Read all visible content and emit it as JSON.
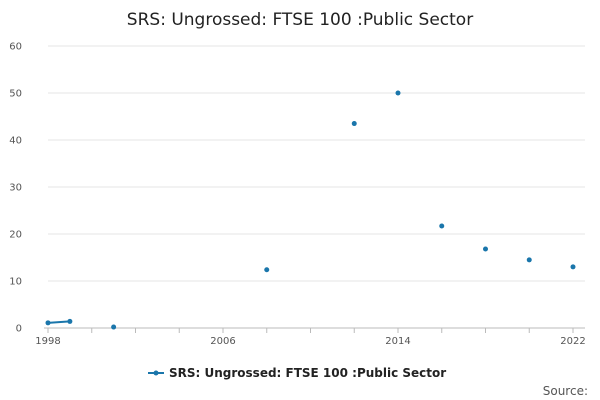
{
  "chart_data": {
    "type": "line",
    "title": "SRS: Ungrossed: FTSE 100 :Public Sector",
    "xlabel": "",
    "ylabel": "",
    "x_ticks": [
      "1998",
      "2006",
      "2014",
      "2022"
    ],
    "y_ticks": [
      "0",
      "10",
      "20",
      "30",
      "40",
      "50",
      "60"
    ],
    "xlim": [
      1998,
      2022
    ],
    "ylim": [
      0,
      60
    ],
    "grid": true,
    "legend_position": "bottom",
    "series": [
      {
        "name": "SRS: Ungrossed: FTSE 100 :Public Sector",
        "color": "#1a76ab",
        "points": [
          {
            "x": 1998,
            "y": 1.1
          },
          {
            "x": 1999,
            "y": 1.4
          },
          {
            "x": 2001,
            "y": 0.2
          },
          {
            "x": 2008,
            "y": 12.4
          },
          {
            "x": 2012,
            "y": 43.5
          },
          {
            "x": 2014,
            "y": 50.0
          },
          {
            "x": 2016,
            "y": 21.7
          },
          {
            "x": 2018,
            "y": 16.8
          },
          {
            "x": 2020,
            "y": 14.5
          },
          {
            "x": 2022,
            "y": 13.0
          }
        ]
      }
    ]
  },
  "footer": {
    "source_label": "Source:"
  }
}
